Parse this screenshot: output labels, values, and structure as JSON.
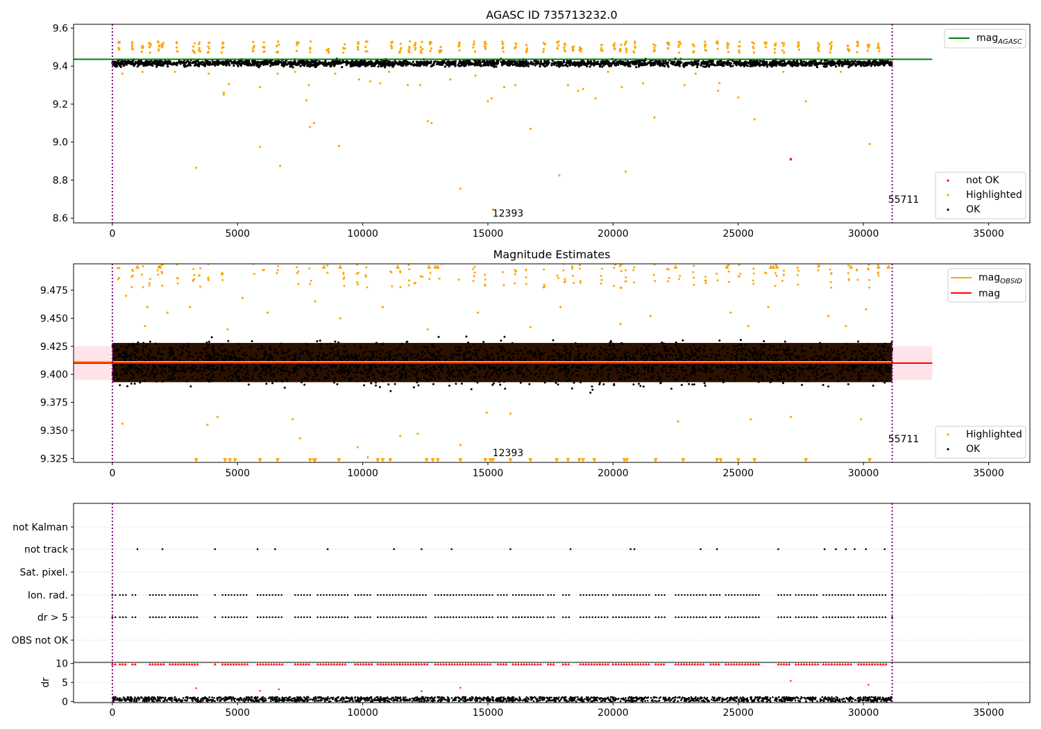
{
  "colors": {
    "ok": "#000000",
    "highlighted": "#ffa500",
    "not_ok": "#ff0000",
    "agasc_line": "#008000",
    "obsid_line": "#ffa500",
    "mag_line": "#ff0000",
    "band": "#ffc0cb",
    "obs_marker": "#800080",
    "dense_fill": "#2b1100",
    "grid": "#b0b0b0"
  },
  "chart_data": [
    {
      "type": "scatter",
      "title": "AGASC ID 735713232.0",
      "xlabel": "",
      "ylabel": "",
      "xlim": [
        -1550,
        36650
      ],
      "ylim": [
        8.575,
        9.62
      ],
      "x_ticks": [
        "0",
        "5000",
        "10000",
        "15000",
        "20000",
        "25000",
        "30000",
        "35000"
      ],
      "x_tick_values": [
        0,
        5000,
        10000,
        15000,
        20000,
        25000,
        30000,
        35000
      ],
      "y_ticks": [
        "8.6",
        "8.8",
        "9.0",
        "9.2",
        "9.4",
        "9.6"
      ],
      "y_tick_values": [
        8.6,
        8.8,
        9.0,
        9.2,
        9.4,
        9.6
      ],
      "series": [
        {
          "name": "not OK",
          "color_key": "not_ok",
          "points": [
            [
              27100,
              8.91
            ]
          ]
        },
        {
          "name": "Highlighted",
          "color_key": "highlighted",
          "points": [
            [
              3350,
              8.865
            ],
            [
              5900,
              8.975
            ],
            [
              6700,
              8.875
            ],
            [
              7900,
              9.08
            ],
            [
              8050,
              9.1
            ],
            [
              9050,
              8.98
            ],
            [
              12600,
              9.11
            ],
            [
              12750,
              9.1
            ],
            [
              13900,
              8.755
            ],
            [
              15200,
              8.645
            ],
            [
              16700,
              9.07
            ],
            [
              17850,
              8.825
            ],
            [
              20500,
              8.845
            ],
            [
              21650,
              9.13
            ],
            [
              25650,
              9.12
            ],
            [
              27700,
              9.215
            ],
            [
              30250,
              8.99
            ],
            [
              4450,
              9.26
            ],
            [
              7750,
              9.22
            ],
            [
              15000,
              9.215
            ],
            [
              15150,
              9.23
            ],
            [
              24200,
              9.27
            ],
            [
              25000,
              9.235
            ],
            [
              18600,
              9.27
            ],
            [
              18800,
              9.28
            ],
            [
              19300,
              9.23
            ],
            [
              20350,
              9.29
            ],
            [
              4650,
              9.305
            ],
            [
              5900,
              9.29
            ],
            [
              7850,
              9.3
            ],
            [
              10300,
              9.32
            ],
            [
              10700,
              9.31
            ],
            [
              11800,
              9.3
            ],
            [
              12300,
              9.3
            ],
            [
              13500,
              9.33
            ],
            [
              15650,
              9.29
            ],
            [
              16100,
              9.3
            ],
            [
              18200,
              9.3
            ],
            [
              21200,
              9.31
            ],
            [
              22850,
              9.3
            ],
            [
              24250,
              9.31
            ],
            [
              9850,
              9.33
            ],
            [
              4450,
              9.25
            ],
            [
              400,
              9.36
            ],
            [
              1200,
              9.37
            ],
            [
              2500,
              9.37
            ],
            [
              3850,
              9.36
            ],
            [
              6600,
              9.36
            ],
            [
              7300,
              9.37
            ],
            [
              8900,
              9.36
            ],
            [
              11050,
              9.37
            ],
            [
              14500,
              9.35
            ],
            [
              19800,
              9.37
            ],
            [
              23300,
              9.36
            ],
            [
              26800,
              9.37
            ],
            [
              29100,
              9.37
            ]
          ]
        },
        {
          "name": "OK",
          "color_key": "ok",
          "points": []
        }
      ],
      "line": {
        "name": "mag_AGASC",
        "value": 9.436,
        "x_range": [
          -1550,
          32750
        ]
      },
      "ok_band": {
        "min": 9.37,
        "max": 9.455,
        "center": 9.415
      },
      "highlight_clusters": {
        "min": 9.47,
        "max": 9.53,
        "x_centers": [
          250,
          800,
          1200,
          1500,
          1850,
          2000,
          2600,
          3250,
          3500,
          3850,
          4400,
          5650,
          6050,
          6600,
          7400,
          7900,
          8600,
          9250,
          9800,
          10150,
          11150,
          11500,
          11850,
          12100,
          12350,
          12700,
          13100,
          13850,
          14450,
          14900,
          15600,
          16100,
          16550,
          17250,
          17800,
          18050,
          18400,
          18700,
          19550,
          20050,
          20300,
          20500,
          20850,
          21650,
          22200,
          22650,
          23200,
          23700,
          24150,
          24600,
          25050,
          25600,
          26100,
          26500,
          26800,
          27400,
          28200,
          28700,
          29400,
          29750,
          30200,
          30600
        ]
      },
      "annotations": [
        {
          "text": "12393",
          "x": 15550,
          "y": 8.59
        },
        {
          "text": "55711",
          "x": 31200,
          "y": 8.665
        }
      ],
      "vlines": [
        0,
        31150
      ],
      "legend": {
        "lines_pos": "upper-right",
        "markers_pos": "lower-right",
        "line_entries": [
          "mag"
        ],
        "line_subscripts": [
          "AGASC"
        ],
        "marker_entries": [
          "not OK",
          "Highlighted",
          "OK"
        ]
      }
    },
    {
      "type": "scatter",
      "title": "Magnitude Estimates",
      "xlabel": "",
      "ylabel": "",
      "xlim": [
        -1550,
        36650
      ],
      "ylim": [
        9.3215,
        9.4985
      ],
      "x_ticks": [
        "0",
        "5000",
        "10000",
        "15000",
        "20000",
        "25000",
        "30000",
        "35000"
      ],
      "x_tick_values": [
        0,
        5000,
        10000,
        15000,
        20000,
        25000,
        30000,
        35000
      ],
      "y_ticks": [
        "9.325",
        "9.350",
        "9.375",
        "9.400",
        "9.425",
        "9.450",
        "9.475"
      ],
      "y_tick_values": [
        9.325,
        9.35,
        9.375,
        9.4,
        9.425,
        9.45,
        9.475
      ],
      "series": [
        {
          "name": "Highlighted",
          "color_key": "highlighted",
          "points": [
            [
              400,
              9.356
            ],
            [
              3800,
              9.355
            ],
            [
              4200,
              9.362
            ],
            [
              7200,
              9.36
            ],
            [
              7500,
              9.343
            ],
            [
              9800,
              9.335
            ],
            [
              10200,
              9.326
            ],
            [
              11500,
              9.345
            ],
            [
              12200,
              9.347
            ],
            [
              13900,
              9.337
            ],
            [
              14950,
              9.366
            ],
            [
              15900,
              9.365
            ],
            [
              22600,
              9.358
            ],
            [
              25500,
              9.36
            ],
            [
              27100,
              9.362
            ],
            [
              29900,
              9.36
            ],
            [
              550,
              9.47
            ],
            [
              1400,
              9.46
            ],
            [
              2200,
              9.455
            ],
            [
              3100,
              9.46
            ],
            [
              5200,
              9.468
            ],
            [
              6200,
              9.455
            ],
            [
              8100,
              9.465
            ],
            [
              9100,
              9.45
            ],
            [
              10800,
              9.46
            ],
            [
              14600,
              9.455
            ],
            [
              17900,
              9.46
            ],
            [
              21500,
              9.452
            ],
            [
              24700,
              9.455
            ],
            [
              26200,
              9.46
            ],
            [
              28600,
              9.452
            ],
            [
              30100,
              9.458
            ],
            [
              1300,
              9.443
            ],
            [
              4600,
              9.44
            ],
            [
              12600,
              9.44
            ],
            [
              16700,
              9.442
            ],
            [
              20300,
              9.445
            ],
            [
              25400,
              9.443
            ],
            [
              29300,
              9.443
            ]
          ]
        },
        {
          "name": "OK",
          "color_key": "ok",
          "points": []
        }
      ],
      "clipped_low_x": [
        3350,
        4500,
        4700,
        4900,
        5900,
        6600,
        7900,
        8050,
        8100,
        9050,
        10600,
        10800,
        11100,
        12550,
        12800,
        13000,
        13900,
        14900,
        15100,
        15200,
        15900,
        16700,
        17750,
        18200,
        18650,
        18800,
        19250,
        20450,
        20550,
        21700,
        22800,
        24150,
        24300,
        25000,
        25650,
        27700,
        30250
      ],
      "clipped_high_x": [
        1000,
        1900,
        8450,
        9100,
        11400,
        12650,
        12900,
        13000,
        22500,
        24550,
        26300,
        26400,
        26550,
        29500,
        30600,
        31000
      ],
      "obsid_line": {
        "name": "mag_OBSID",
        "value": 9.41,
        "x_range": [
          -1550,
          31150
        ]
      },
      "mag_line": {
        "name": "mag",
        "value": 9.41,
        "x_range": [
          -1550,
          32750
        ],
        "band": [
          9.395,
          9.425
        ]
      },
      "ok_band": {
        "inner_min": 9.393,
        "inner_max": 9.428,
        "outer_min": 9.37,
        "outer_max": 9.455
      },
      "annotations": [
        {
          "text": "12393",
          "x": 15550,
          "y": 9.3255
        },
        {
          "text": "55711",
          "x": 31200,
          "y": 9.3385
        }
      ],
      "vlines": [
        0,
        31150
      ],
      "legend": {
        "lines_pos": "upper-right",
        "markers_pos": "lower-right",
        "line_entries": [
          "mag",
          "mag"
        ],
        "line_subscripts": [
          "OBSID",
          ""
        ],
        "marker_entries": [
          "Highlighted",
          "OK"
        ]
      }
    },
    {
      "type": "scatter",
      "title": "",
      "xlabel": "",
      "ylabel": "",
      "xlim": [
        -1550,
        36650
      ],
      "categories": [
        "not Kalman",
        "not track",
        "Sat. pixel.",
        "Ion. rad.",
        "dr > 5",
        "OBS not OK"
      ],
      "flag_x": {
        "not Kalman": [],
        "not track": [
          1000,
          2000,
          4100,
          5800,
          6500,
          8600,
          11250,
          12350,
          13550,
          15900,
          18300,
          20700,
          20850,
          23500,
          24150,
          26600,
          28450,
          28900,
          29300,
          29650,
          30100,
          30850
        ],
        "Sat. pixel.": [],
        "Ion. rad.": [
          0,
          31150
        ],
        "dr > 5": [
          0,
          31150
        ],
        "OBS not OK": []
      },
      "flag_clusters": [
        [
          0,
          200
        ],
        [
          300,
          600
        ],
        [
          800,
          1000
        ],
        [
          1500,
          2100
        ],
        [
          2300,
          3400
        ],
        [
          4100,
          4150
        ],
        [
          4400,
          5400
        ],
        [
          5800,
          6850
        ],
        [
          7300,
          7900
        ],
        [
          8200,
          9400
        ],
        [
          9700,
          10400
        ],
        [
          10600,
          12600
        ],
        [
          12900,
          15200
        ],
        [
          15400,
          15800
        ],
        [
          16000,
          17200
        ],
        [
          17400,
          17700
        ],
        [
          18000,
          18300
        ],
        [
          18700,
          19800
        ],
        [
          20000,
          21500
        ],
        [
          21700,
          22100
        ],
        [
          22500,
          23700
        ],
        [
          23900,
          24300
        ],
        [
          24500,
          25900
        ],
        [
          26600,
          27100
        ],
        [
          27300,
          28200
        ],
        [
          28400,
          29600
        ],
        [
          29800,
          30900
        ]
      ],
      "vlines": [
        0,
        31150
      ]
    },
    {
      "type": "scatter",
      "title": "",
      "xlabel": "",
      "ylabel": "dr",
      "xlim": [
        -1550,
        36650
      ],
      "ylim": [
        -0.3,
        10.3
      ],
      "y_ticks": [
        "0",
        "5",
        "10"
      ],
      "y_tick_values": [
        0,
        5,
        10
      ],
      "x_ticks": [
        "0",
        "5000",
        "10000",
        "15000",
        "20000",
        "25000",
        "30000",
        "35000"
      ],
      "x_tick_values": [
        0,
        5000,
        10000,
        15000,
        20000,
        25000,
        30000,
        35000
      ],
      "red_top_value": 9.8,
      "red_points": [
        [
          3350,
          3.5
        ],
        [
          5900,
          2.8
        ],
        [
          6650,
          3.2
        ],
        [
          12350,
          2.7
        ],
        [
          13900,
          3.6
        ],
        [
          27100,
          5.4
        ],
        [
          30200,
          4.4
        ]
      ],
      "black_band": [
        0,
        1.2
      ],
      "vlines": [
        0,
        31150
      ]
    }
  ]
}
